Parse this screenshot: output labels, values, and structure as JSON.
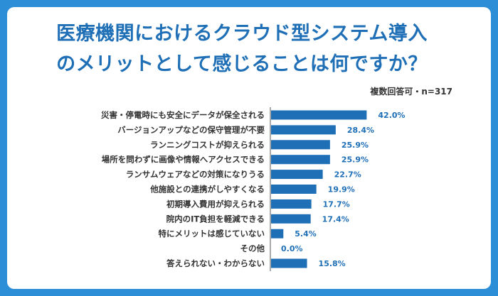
{
  "title_line1": "医療機関におけるクラウド型システム導入",
  "title_line2": "のメリットとして感じることは何ですか？",
  "note": "複数回答可・n=317",
  "chart_data": {
    "type": "bar",
    "orientation": "horizontal",
    "categories": [
      "災害・停電時にも安全にデータが保全される",
      "バージョンアップなどの保守管理が不要",
      "ランニングコストが抑えられる",
      "場所を問わずに画像や情報へアクセスできる",
      "ランサムウェアなどの対策になりうる",
      "他施設との連携がしやすくなる",
      "初期導入費用が抑えられる",
      "院内のIT負担を軽減できる",
      "特にメリットは感じていない",
      "その他",
      "答えられない・わからない"
    ],
    "values": [
      42.0,
      28.4,
      25.9,
      25.9,
      22.7,
      19.9,
      17.7,
      17.4,
      5.4,
      0.0,
      15.8
    ],
    "value_labels": [
      "42.0%",
      "28.4%",
      "25.9%",
      "25.9%",
      "22.7%",
      "19.9%",
      "17.7%",
      "17.4%",
      "5.4%",
      "0.0%",
      "15.8%"
    ],
    "bar_color": "#1f6fb7",
    "axis_line": true,
    "grid": false
  }
}
